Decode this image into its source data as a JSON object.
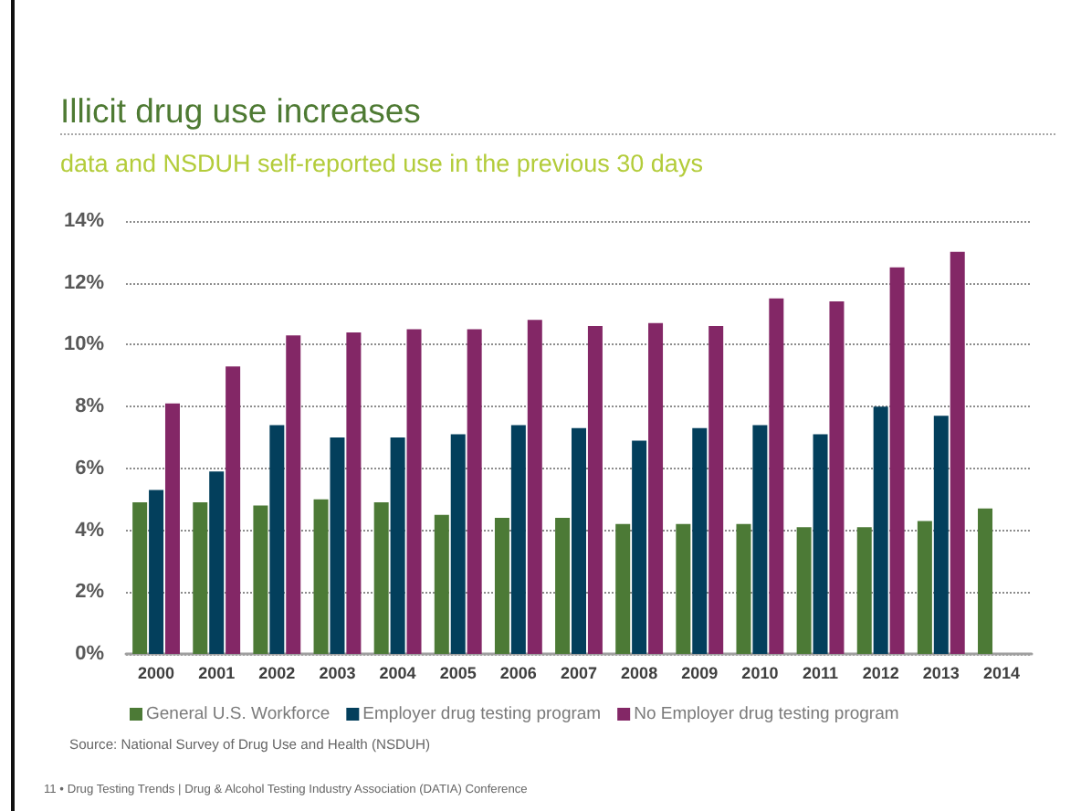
{
  "chart_data": {
    "type": "bar",
    "title": "Illicit drug use increases",
    "subtitle": "data and NSDUH self-reported use in the previous 30 days",
    "categories": [
      "2000",
      "2001",
      "2002",
      "2003",
      "2004",
      "2005",
      "2006",
      "2007",
      "2008",
      "2009",
      "2010",
      "2011",
      "2012",
      "2013",
      "2014"
    ],
    "series": [
      {
        "name": "General U.S. Workforce",
        "color": "#4c7a36",
        "values": [
          4.9,
          4.9,
          4.8,
          5.0,
          4.9,
          4.5,
          4.4,
          4.4,
          4.2,
          4.2,
          4.2,
          4.1,
          4.1,
          4.3,
          4.7
        ]
      },
      {
        "name": "Employer drug testing program",
        "color": "#033f5c",
        "values": [
          5.3,
          5.9,
          7.4,
          7.0,
          7.0,
          7.1,
          7.4,
          7.3,
          6.9,
          7.3,
          7.4,
          7.1,
          8.0,
          7.7,
          null
        ]
      },
      {
        "name": "No Employer drug testing program",
        "color": "#832766",
        "values": [
          8.1,
          9.3,
          10.3,
          10.4,
          10.5,
          10.5,
          10.8,
          10.6,
          10.7,
          10.6,
          11.5,
          11.4,
          12.5,
          13.0,
          null
        ]
      }
    ],
    "ylim": [
      0,
      14
    ],
    "yticks": [
      {
        "value": 0,
        "label": "0%"
      },
      {
        "value": 2,
        "label": "2%"
      },
      {
        "value": 4,
        "label": "4%"
      },
      {
        "value": 6,
        "label": "6%"
      },
      {
        "value": 8,
        "label": "8%"
      },
      {
        "value": 10,
        "label": "10%"
      },
      {
        "value": 12,
        "label": "12%"
      },
      {
        "value": 14,
        "label": "14%"
      }
    ],
    "grid": "y",
    "legend": "bottom",
    "annotations": [
      "Source: National Survey of Drug Use and Health (NSDUH)",
      "11 • Drug Testing Trends  |  Drug & Alcohol Testing Industry Association (DATIA)  Conference"
    ]
  }
}
